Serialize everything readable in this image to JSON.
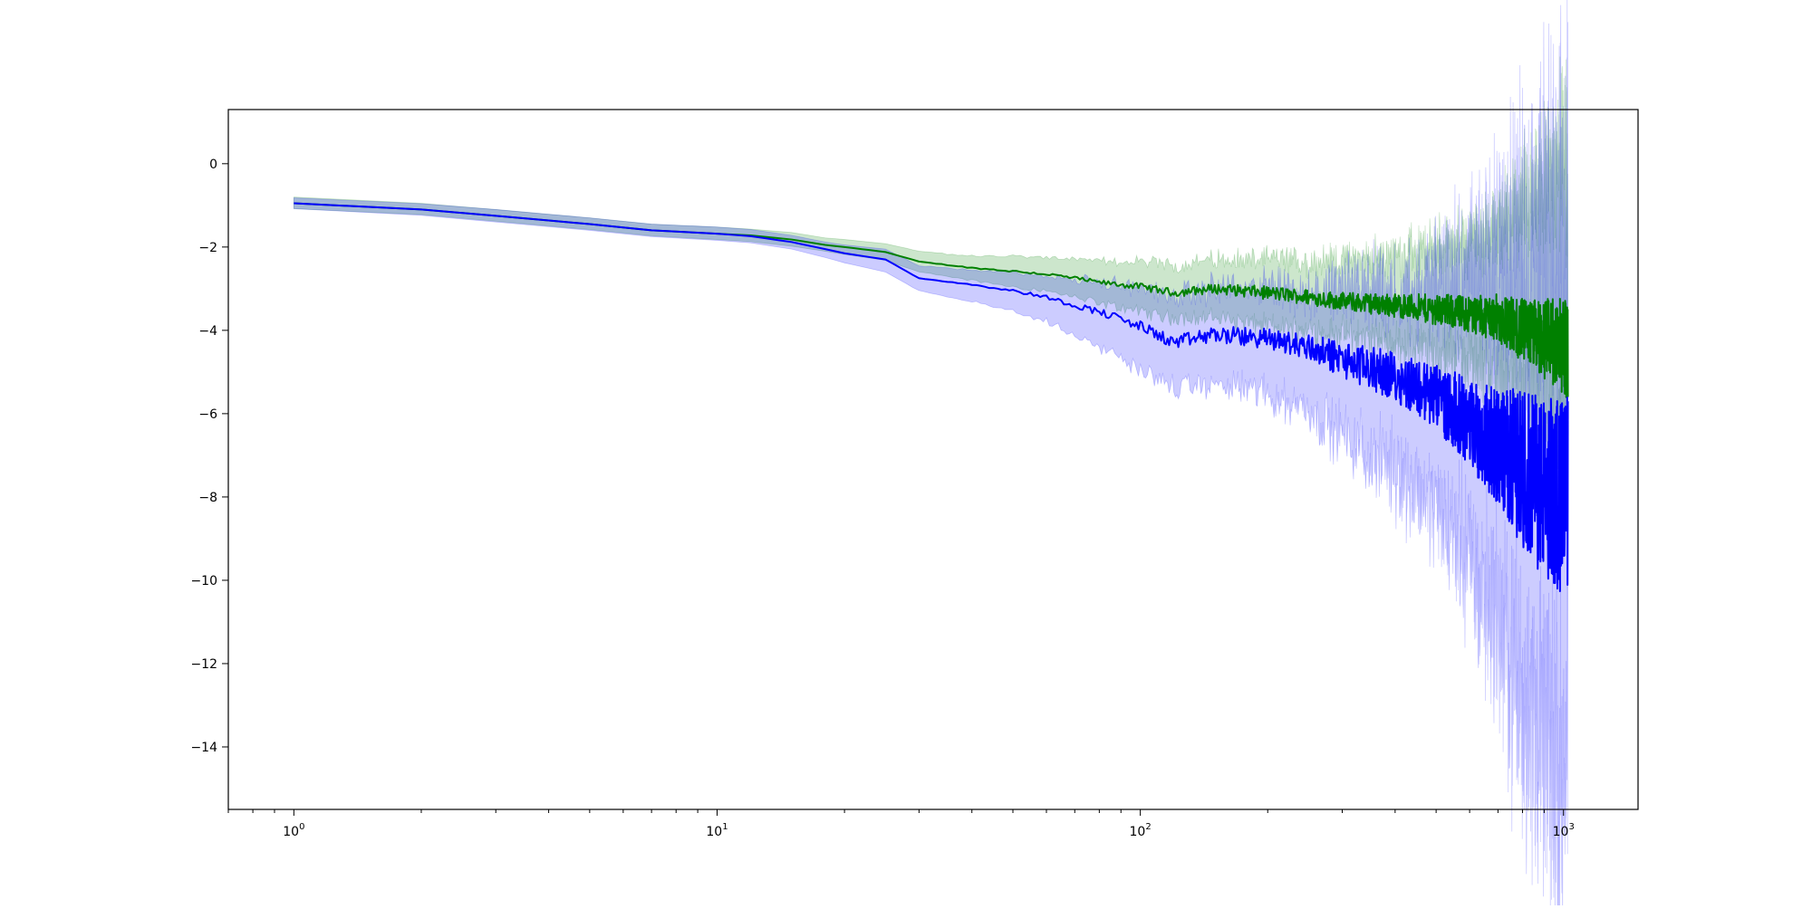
{
  "chart_data": {
    "type": "line",
    "title": "",
    "xlabel": "",
    "ylabel": "",
    "x_scale": "log",
    "xlim": [
      0.7,
      1500
    ],
    "ylim": [
      -15.5,
      1.3
    ],
    "grid": false,
    "legend": "none",
    "x_tick_labels": [
      {
        "base": "10",
        "exp": "0",
        "value": 1
      },
      {
        "base": "10",
        "exp": "1",
        "value": 10
      },
      {
        "base": "10",
        "exp": "2",
        "value": 100
      },
      {
        "base": "10",
        "exp": "3",
        "value": 1000
      }
    ],
    "y_tick_labels": [
      {
        "label": "0",
        "value": 0
      },
      {
        "label": "−2",
        "value": -2
      },
      {
        "label": "−4",
        "value": -4
      },
      {
        "label": "−6",
        "value": -6
      },
      {
        "label": "−8",
        "value": -8
      },
      {
        "label": "−10",
        "value": -10
      },
      {
        "label": "−12",
        "value": -12
      },
      {
        "label": "−14",
        "value": -14
      }
    ],
    "series": [
      {
        "color": "#008000",
        "band_color": "#008000",
        "band_opacity": 0.2,
        "x": [
          1,
          2,
          3,
          5,
          7,
          10,
          12,
          15,
          18,
          20,
          25,
          30,
          40,
          50,
          60,
          70,
          80,
          100,
          120,
          150,
          200,
          250,
          300,
          400,
          500,
          600,
          700,
          800,
          900,
          1024
        ],
        "mean": [
          -0.95,
          -1.1,
          -1.25,
          -1.45,
          -1.6,
          -1.68,
          -1.72,
          -1.82,
          -1.95,
          -2.0,
          -2.12,
          -2.35,
          -2.5,
          -2.58,
          -2.65,
          -2.75,
          -2.85,
          -2.95,
          -3.1,
          -3.0,
          -3.1,
          -3.2,
          -3.3,
          -3.4,
          -3.5,
          -3.6,
          -3.7,
          -4.0,
          -4.2,
          -4.4
        ],
        "lower": [
          -1.08,
          -1.22,
          -1.38,
          -1.58,
          -1.73,
          -1.82,
          -1.87,
          -1.98,
          -2.1,
          -2.18,
          -2.32,
          -2.6,
          -2.8,
          -2.95,
          -3.05,
          -3.2,
          -3.35,
          -3.55,
          -3.7,
          -3.7,
          -3.9,
          -4.0,
          -4.1,
          -4.3,
          -4.5,
          -4.7,
          -5.0,
          -5.5,
          -6.0,
          -6.5
        ],
        "upper": [
          -0.8,
          -0.95,
          -1.1,
          -1.3,
          -1.45,
          -1.52,
          -1.57,
          -1.65,
          -1.78,
          -1.82,
          -1.92,
          -2.1,
          -2.22,
          -2.22,
          -2.25,
          -2.3,
          -2.35,
          -2.35,
          -2.45,
          -2.3,
          -2.3,
          -2.35,
          -2.3,
          -2.2,
          -2.0,
          -1.8,
          -1.5,
          -1.0,
          -0.5,
          0.4
        ]
      },
      {
        "color": "#0000ff",
        "band_color": "#0000ff",
        "band_opacity": 0.2,
        "x": [
          1,
          2,
          3,
          5,
          7,
          10,
          12,
          15,
          18,
          20,
          25,
          30,
          40,
          50,
          60,
          70,
          80,
          100,
          120,
          150,
          200,
          250,
          300,
          400,
          500,
          600,
          700,
          800,
          900,
          1024
        ],
        "mean": [
          -0.95,
          -1.1,
          -1.25,
          -1.45,
          -1.6,
          -1.68,
          -1.74,
          -1.88,
          -2.05,
          -2.15,
          -2.3,
          -2.75,
          -2.9,
          -3.05,
          -3.2,
          -3.4,
          -3.55,
          -3.9,
          -4.3,
          -4.1,
          -4.2,
          -4.4,
          -4.7,
          -5.1,
          -5.6,
          -6.2,
          -6.8,
          -7.3,
          -7.8,
          -8.0
        ],
        "lower": [
          -1.08,
          -1.24,
          -1.4,
          -1.6,
          -1.75,
          -1.84,
          -1.9,
          -2.05,
          -2.25,
          -2.38,
          -2.6,
          -3.05,
          -3.3,
          -3.55,
          -3.8,
          -4.1,
          -4.4,
          -4.9,
          -5.4,
          -5.3,
          -5.5,
          -5.9,
          -6.5,
          -7.4,
          -8.2,
          -9.5,
          -11.0,
          -13.0,
          -14.0,
          -14.8
        ],
        "upper": [
          -0.82,
          -0.96,
          -1.1,
          -1.3,
          -1.45,
          -1.52,
          -1.58,
          -1.72,
          -1.88,
          -1.95,
          -2.05,
          -2.45,
          -2.55,
          -2.6,
          -2.7,
          -2.8,
          -2.85,
          -3.0,
          -3.2,
          -3.0,
          -3.0,
          -3.1,
          -3.0,
          -3.0,
          -2.9,
          -2.6,
          -2.3,
          -1.8,
          -1.5,
          -1.2
        ]
      }
    ]
  }
}
